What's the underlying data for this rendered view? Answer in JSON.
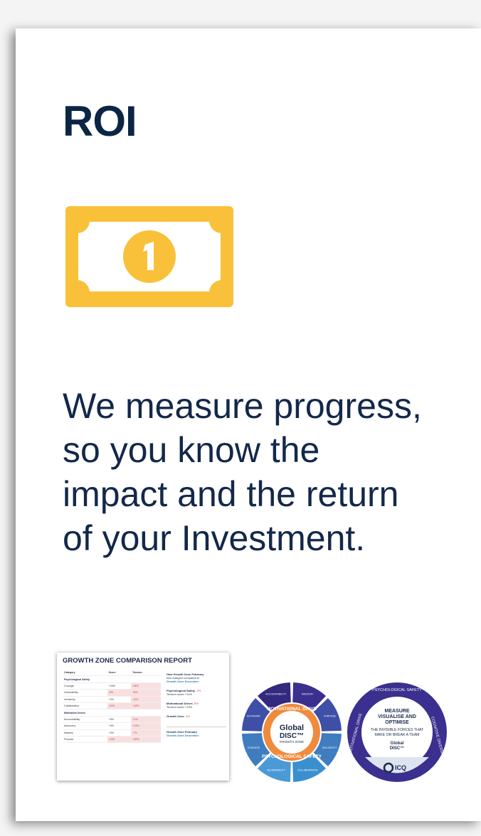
{
  "title": "ROI",
  "text": "We measure progress, so you know the impact and the return of your Investment.",
  "report": {
    "title": "GROWTH ZONE COMPARISON REPORT",
    "header": [
      "Category",
      "Score",
      "Tension"
    ],
    "sections": [
      {
        "name": "Psychological Safety",
        "rows": [
          [
            "Courage",
            "+20%",
            "-15%"
          ],
          [
            "Vulnerability",
            "-5%",
            "+8%"
          ],
          [
            "Inclusivity",
            "+2%",
            "-11%"
          ],
          [
            "Collaboration",
            "-10%",
            "+13%"
          ]
        ]
      },
      {
        "name": "Motivation Drives",
        "rows": [
          [
            "Accountability",
            "+5%",
            "+1%"
          ],
          [
            "Autonomy",
            "+4%",
            "+13%"
          ],
          [
            "Mastery",
            "+3%",
            "-7%"
          ],
          [
            "Purpose",
            "-10%",
            "+16%"
          ]
        ]
      }
    ],
    "compare_title": "How Growth Zone February",
    "compare_sub": "has changed compared to",
    "compare_ref": "Growth Zone December",
    "items": [
      {
        "label": "Psychological Safety",
        "value": "-2%",
        "tension": "Tension score +11%"
      },
      {
        "label": "Motivational Drives",
        "value": "-8%",
        "tension": "Tension score +13%"
      },
      {
        "label": "Growth Zone",
        "value": "-4%"
      }
    ],
    "legend": [
      "Growth Zone February",
      "Growth Zone December"
    ]
  },
  "wheel1": {
    "top": "MOTIVATIONAL DRIVE",
    "brand": "Global",
    "product": "DISC™",
    "sub": "GROWTH ZONE",
    "bottom": "PSYCHOLOGICAL SAFETY",
    "segments": [
      "MASTERY",
      "PURPOSE",
      "INCLUSIVITY",
      "COLLABORATION",
      "VULNERABILITY",
      "COURAGE",
      "AUTONOMY",
      "ACCOUNTABILITY"
    ]
  },
  "wheel2": {
    "ring": [
      "PSYCHOLOGICAL SAFETY",
      "COGNITIVE DIVERSITY",
      "MOTIVATIONAL DRIVE"
    ],
    "headline": [
      "MEASURE",
      "VISUALISE AND",
      "OPTIMISE"
    ],
    "tagline": [
      "THE INVISIBLE FORCES THAT",
      "MAKE OR BREAK A TEAM"
    ],
    "brand": "Global",
    "product": "DISC™",
    "logo": "ICQ"
  }
}
